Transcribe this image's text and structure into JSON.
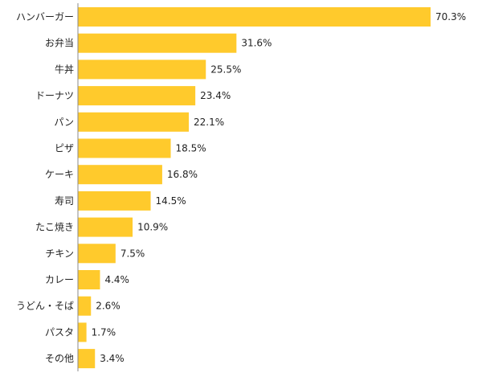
{
  "chart_data": {
    "type": "bar",
    "orientation": "horizontal",
    "categories": [
      "ハンバーガー",
      "お弁当",
      "牛丼",
      "ドーナツ",
      "パン",
      "ピザ",
      "ケーキ",
      "寿司",
      "たこ焼き",
      "チキン",
      "カレー",
      "うどん・そば",
      "パスタ",
      "その他"
    ],
    "values": [
      70.3,
      31.6,
      25.5,
      23.4,
      22.1,
      18.5,
      16.8,
      14.5,
      10.9,
      7.5,
      4.4,
      2.6,
      1.7,
      3.4
    ],
    "value_labels": [
      "70.3%",
      "31.6%",
      "25.5%",
      "23.4%",
      "22.1%",
      "18.5%",
      "16.8%",
      "14.5%",
      "10.9%",
      "7.5%",
      "4.4%",
      "2.6%",
      "1.7%",
      "3.4%"
    ],
    "xlim": [
      0,
      70.3
    ],
    "grid": false,
    "colors": {
      "bar": "#ffca2c",
      "axis": "#888888",
      "text": "#222222"
    }
  }
}
